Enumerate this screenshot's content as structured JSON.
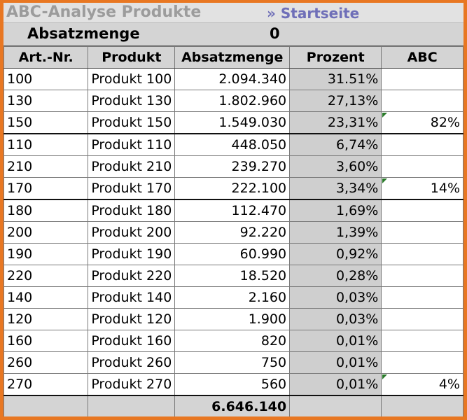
{
  "title": "ABC-Analyse Produkte",
  "home_link": "» Startseite",
  "summary": {
    "label": "Absatzmenge",
    "value": "0"
  },
  "columns": [
    "Art.-Nr.",
    "Produkt",
    "Absatzmenge",
    "Prozent",
    "ABC"
  ],
  "rows": [
    {
      "art": "100",
      "produkt": "Produkt 100",
      "menge": "2.094.340",
      "prozent": "31.51%",
      "abc": ""
    },
    {
      "art": "130",
      "produkt": "Produkt 130",
      "menge": "1.802.960",
      "prozent": "27,13%",
      "abc": ""
    },
    {
      "art": "150",
      "produkt": "Produkt 150",
      "menge": "1.549.030",
      "prozent": "23,31%",
      "abc": "82%"
    },
    {
      "art": "110",
      "produkt": "Produkt 110",
      "menge": "448.050",
      "prozent": "6,74%",
      "abc": ""
    },
    {
      "art": "210",
      "produkt": "Produkt 210",
      "menge": "239.270",
      "prozent": "3,60%",
      "abc": ""
    },
    {
      "art": "170",
      "produkt": "Produkt 170",
      "menge": "222.100",
      "prozent": "3,34%",
      "abc": "14%"
    },
    {
      "art": "180",
      "produkt": "Produkt 180",
      "menge": "112.470",
      "prozent": "1,69%",
      "abc": ""
    },
    {
      "art": "200",
      "produkt": "Produkt 200",
      "menge": "92.220",
      "prozent": "1,39%",
      "abc": ""
    },
    {
      "art": "190",
      "produkt": "Produkt 190",
      "menge": "60.990",
      "prozent": "0,92%",
      "abc": ""
    },
    {
      "art": "220",
      "produkt": "Produkt 220",
      "menge": "18.520",
      "prozent": "0,28%",
      "abc": ""
    },
    {
      "art": "140",
      "produkt": "Produkt 140",
      "menge": "2.160",
      "prozent": "0,03%",
      "abc": ""
    },
    {
      "art": "120",
      "produkt": "Produkt 120",
      "menge": "1.900",
      "prozent": "0,03%",
      "abc": ""
    },
    {
      "art": "160",
      "produkt": "Produkt 160",
      "menge": "820",
      "prozent": "0,01%",
      "abc": ""
    },
    {
      "art": "260",
      "produkt": "Produkt 260",
      "menge": "750",
      "prozent": "0,01%",
      "abc": ""
    },
    {
      "art": "270",
      "produkt": "Produkt 270",
      "menge": "560",
      "prozent": "0,01%",
      "abc": "4%"
    }
  ],
  "total": {
    "menge": "6.646.140"
  },
  "colors": {
    "frame": "#e87722",
    "header_bg": "#d4d4d4",
    "title": "#9c9c9c",
    "link": "#6f6fb8"
  }
}
